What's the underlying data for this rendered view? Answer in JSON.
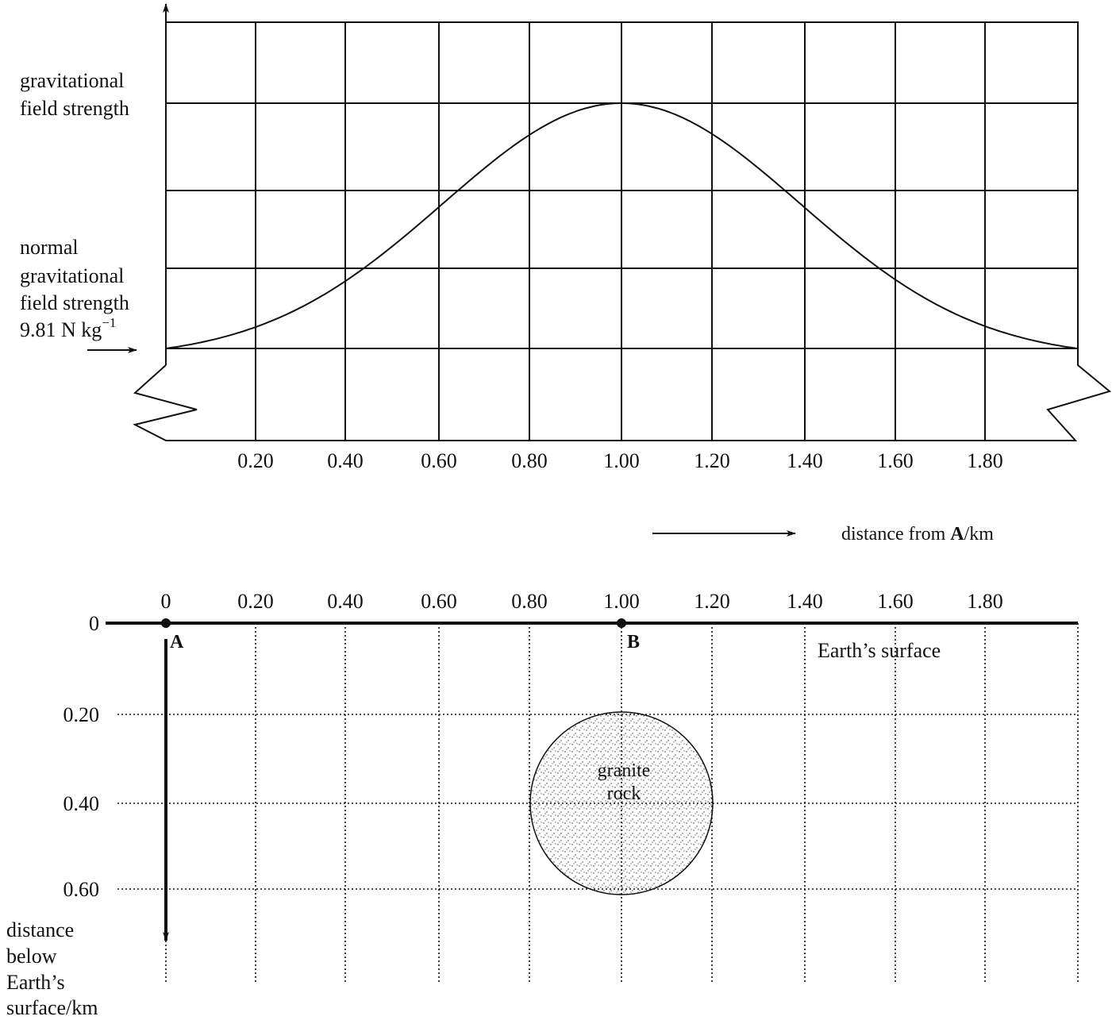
{
  "graph": {
    "y_label": [
      "gravitational",
      "field strength"
    ],
    "normal_label": [
      "normal",
      "gravitational",
      "field strength"
    ],
    "normal_value": "9.81 N kg",
    "normal_value_exponent": "−1",
    "x_ticks": [
      "0.20",
      "0.40",
      "0.60",
      "0.80",
      "1.00",
      "1.20",
      "1.40",
      "1.60",
      "1.80"
    ],
    "x_label": {
      "prefix": "distance from ",
      "bold": "A",
      "suffix": "/km"
    }
  },
  "section": {
    "x_ticks": [
      "0",
      "0.20",
      "0.40",
      "0.60",
      "0.80",
      "1.00",
      "1.20",
      "1.40",
      "1.60",
      "1.80"
    ],
    "y_ticks": [
      "0",
      "0.20",
      "0.40",
      "0.60"
    ],
    "point_a": "A",
    "point_b": "B",
    "surface": "Earth’s surface",
    "rock": [
      "granite",
      "rock"
    ],
    "y_label": [
      "distance",
      "below",
      "Earth’s",
      "surface/km"
    ]
  }
}
